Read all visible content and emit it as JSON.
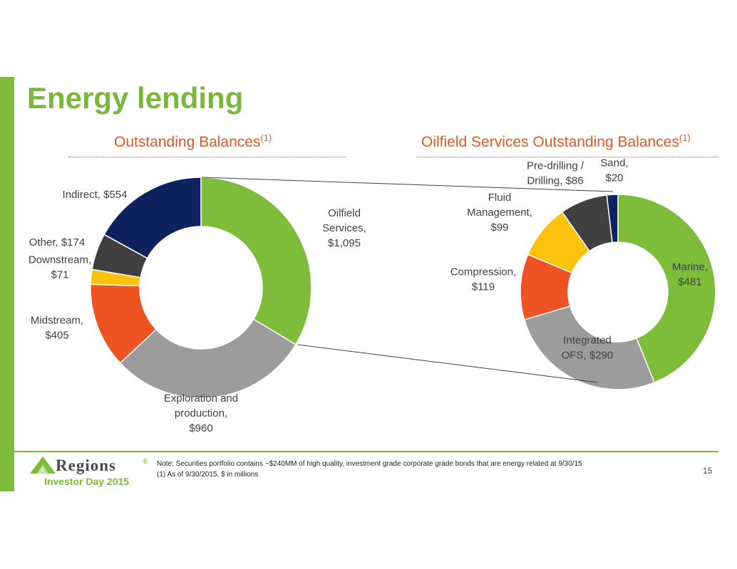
{
  "page": {
    "title": "Energy lending",
    "subtitle_left": "Outstanding Balances",
    "subtitle_right": "Oilfield Services Outstanding Balances",
    "footnote_marker": "(1)",
    "note_line1": "Note: Securities portfolio contains ~$240MM of high quality, investment grade corporate grade bonds that are energy related at 9/30/15",
    "note_line2": "(1) As of 9/30/2015, $ in millions",
    "page_number": "15",
    "logo_text": "Regions",
    "logo_mark": "®",
    "event": "Investor Day 2015"
  },
  "colors": {
    "brand_green": "#7dbd3a",
    "accent_orange": "#e8561f"
  },
  "chart_data": [
    {
      "type": "pie",
      "title": "Outstanding Balances(1)",
      "units": "$ in millions",
      "categories": [
        "Oilfield Services",
        "Exploration and production",
        "Midstream",
        "Downstream",
        "Other",
        "Indirect"
      ],
      "values": [
        1095,
        960,
        405,
        71,
        174,
        554
      ],
      "labels": [
        [
          "Oilfield",
          "Services,",
          "$1,095"
        ],
        [
          "Exploration and",
          "production,",
          "$960"
        ],
        [
          "Midstream,",
          "$405"
        ],
        [
          "Downstream,",
          "$71"
        ],
        [
          "Other,  $174"
        ],
        [
          "Indirect,  $554"
        ]
      ],
      "colors": [
        "#7dbd3a",
        "#9c9c9c",
        "#f05323",
        "#fcc20d",
        "#404040",
        "#0f2260"
      ]
    },
    {
      "type": "pie",
      "title": "Oilfield Services Outstanding Balances(1)",
      "units": "$ in millions",
      "categories": [
        "Marine",
        "Integrated OFS",
        "Compression",
        "Fluid Management",
        "Pre-drilling / Drilling",
        "Sand"
      ],
      "values": [
        481,
        290,
        119,
        99,
        86,
        20
      ],
      "labels": [
        [
          "Marine,",
          "$481"
        ],
        [
          "Integrated",
          "OFS,  $290"
        ],
        [
          "Compression,",
          "$119"
        ],
        [
          "Fluid",
          "Management,",
          "$99"
        ],
        [
          "Pre-drilling /",
          "Drilling,  $86"
        ],
        [
          "Sand,",
          "$20"
        ]
      ],
      "colors": [
        "#7dbd3a",
        "#9c9c9c",
        "#f05323",
        "#fcc20d",
        "#404040",
        "#0f2260"
      ]
    }
  ]
}
